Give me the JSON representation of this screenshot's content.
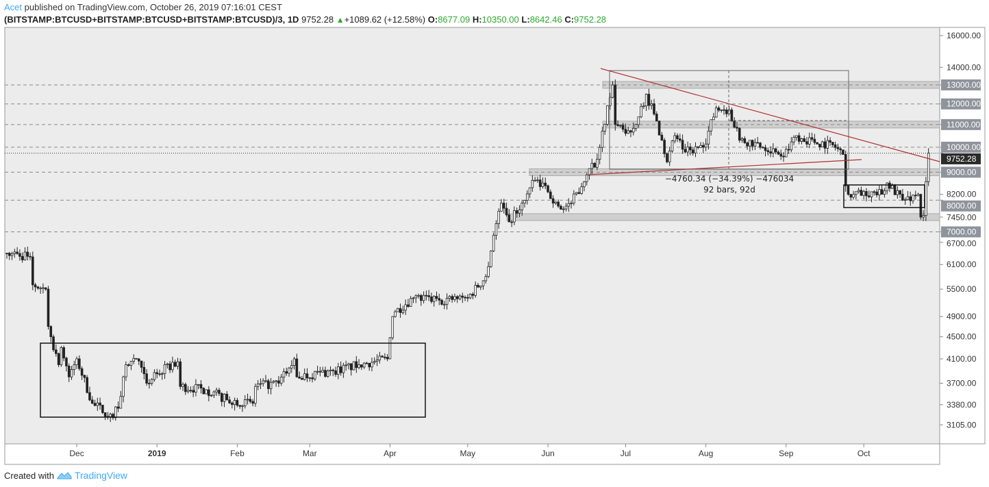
{
  "header": {
    "author": "Acet",
    "published_text": "published on TradingView.com, October 26, 2019 07:16:01 CEST",
    "symbol": "(BITSTAMP:BTCUSD+BITSTAMP:BTCUSD+BITSTAMP:BTCUSD)/3, 1D",
    "last": "9752.28",
    "change": "+1089.62 (+12.58%)",
    "o_label": "O:",
    "o": "8677.09",
    "h_label": "H:",
    "h": "10350.00",
    "l_label": "L:",
    "l": "8642.46",
    "c_label": "C:",
    "c": "9752.28"
  },
  "footer": {
    "created_with": "Created with",
    "brand": "TradingView"
  },
  "colors": {
    "up": "#ffffff",
    "down": "#222222",
    "accent": "#3fa9f5",
    "trend": "#b03030",
    "green": "#2ea82e"
  },
  "chart_data": {
    "type": "candlestick",
    "scale": "log",
    "ylim": [
      2950,
      16500
    ],
    "x_start": "2018-11-04",
    "x_end": "2019-10-26",
    "x_ticks": [
      {
        "label": "Dec",
        "date": "2018-12-01"
      },
      {
        "label": "2019",
        "date": "2019-01-01"
      },
      {
        "label": "Feb",
        "date": "2019-02-01"
      },
      {
        "label": "Mar",
        "date": "2019-03-01"
      },
      {
        "label": "Apr",
        "date": "2019-04-01"
      },
      {
        "label": "May",
        "date": "2019-05-01"
      },
      {
        "label": "Jun",
        "date": "2019-06-01"
      },
      {
        "label": "Jul",
        "date": "2019-07-01"
      },
      {
        "label": "Aug",
        "date": "2019-08-01"
      },
      {
        "label": "Sep",
        "date": "2019-09-01"
      },
      {
        "label": "Oct",
        "date": "2019-10-01"
      }
    ],
    "y_ticks": [
      {
        "v": 16000,
        "label": "16000.00"
      },
      {
        "v": 14000,
        "label": "14000.00"
      },
      {
        "v": 13000,
        "label": "13000.00",
        "boxed": true
      },
      {
        "v": 12000,
        "label": "12000.00",
        "boxed": true
      },
      {
        "v": 11000,
        "label": "11000.00",
        "boxed": true
      },
      {
        "v": 10000,
        "label": "10000.00",
        "boxed": true
      },
      {
        "v": 9000,
        "label": "9000.00",
        "boxed": true
      },
      {
        "v": 8200,
        "label": "8200.00"
      },
      {
        "v": 8000,
        "label": "8000.00",
        "boxed": true
      },
      {
        "v": 7450,
        "label": "7450.00"
      },
      {
        "v": 7000,
        "label": "7000.00",
        "boxed": true
      },
      {
        "v": 6700,
        "label": "6700.00"
      },
      {
        "v": 6100,
        "label": "6100.00"
      },
      {
        "v": 5500,
        "label": "5500.00"
      },
      {
        "v": 4900,
        "label": "4900.00"
      },
      {
        "v": 4500,
        "label": "4500.00"
      },
      {
        "v": 4100,
        "label": "4100.00"
      },
      {
        "v": 3700,
        "label": "3700.00"
      },
      {
        "v": 3380,
        "label": "3380.00"
      },
      {
        "v": 3105,
        "label": "3105.00"
      }
    ],
    "last_price_label": "9752.28",
    "last_price": 9752.28,
    "horizontal_levels": [
      13000,
      12000,
      11000,
      10000,
      9000,
      8000,
      7000
    ],
    "zones": [
      13000,
      11000,
      9000,
      7450
    ],
    "measure_label_1": "−4760.34 (−34.39%) −476034",
    "measure_label_2": "92 bars, 92d",
    "close_keypoints": [
      [
        "2018-11-04",
        6400
      ],
      [
        "2018-11-13",
        6300
      ],
      [
        "2018-11-14",
        5600
      ],
      [
        "2018-11-19",
        5500
      ],
      [
        "2018-11-20",
        4700
      ],
      [
        "2018-11-24",
        4000
      ],
      [
        "2018-11-25",
        4300
      ],
      [
        "2018-11-28",
        3800
      ],
      [
        "2018-12-01",
        4100
      ],
      [
        "2018-12-07",
        3400
      ],
      [
        "2018-12-15",
        3200
      ],
      [
        "2018-12-18",
        3500
      ],
      [
        "2018-12-20",
        4000
      ],
      [
        "2018-12-24",
        4100
      ],
      [
        "2018-12-28",
        3700
      ],
      [
        "2019-01-01",
        3850
      ],
      [
        "2019-01-09",
        4050
      ],
      [
        "2019-01-10",
        3650
      ],
      [
        "2019-01-20",
        3600
      ],
      [
        "2019-01-28",
        3450
      ],
      [
        "2019-02-07",
        3400
      ],
      [
        "2019-02-08",
        3650
      ],
      [
        "2019-02-17",
        3700
      ],
      [
        "2019-02-23",
        4100
      ],
      [
        "2019-02-24",
        3800
      ],
      [
        "2019-03-10",
        3900
      ],
      [
        "2019-03-20",
        4000
      ],
      [
        "2019-03-31",
        4100
      ],
      [
        "2019-04-02",
        4900
      ],
      [
        "2019-04-03",
        5000
      ],
      [
        "2019-04-10",
        5300
      ],
      [
        "2019-04-20",
        5250
      ],
      [
        "2019-05-01",
        5300
      ],
      [
        "2019-05-08",
        5800
      ],
      [
        "2019-05-11",
        6900
      ],
      [
        "2019-05-14",
        7900
      ],
      [
        "2019-05-17",
        7300
      ],
      [
        "2019-05-22",
        7900
      ],
      [
        "2019-05-27",
        8700
      ],
      [
        "2019-05-30",
        8600
      ],
      [
        "2019-06-03",
        7900
      ],
      [
        "2019-06-06",
        7700
      ],
      [
        "2019-06-10",
        7900
      ],
      [
        "2019-06-16",
        8900
      ],
      [
        "2019-06-20",
        9500
      ],
      [
        "2019-06-22",
        10700
      ],
      [
        "2019-06-26",
        13000
      ],
      [
        "2019-06-27",
        11000
      ],
      [
        "2019-07-01",
        10600
      ],
      [
        "2019-07-05",
        11000
      ],
      [
        "2019-07-09",
        12500
      ],
      [
        "2019-07-12",
        11500
      ],
      [
        "2019-07-15",
        10300
      ],
      [
        "2019-07-17",
        9400
      ],
      [
        "2019-07-20",
        10500
      ],
      [
        "2019-07-24",
        9800
      ],
      [
        "2019-07-31",
        10000
      ],
      [
        "2019-08-05",
        11800
      ],
      [
        "2019-08-10",
        11700
      ],
      [
        "2019-08-14",
        10300
      ],
      [
        "2019-08-20",
        10200
      ],
      [
        "2019-08-28",
        9800
      ],
      [
        "2019-08-31",
        9600
      ],
      [
        "2019-09-05",
        10500
      ],
      [
        "2019-09-12",
        10200
      ],
      [
        "2019-09-19",
        10100
      ],
      [
        "2019-09-23",
        9700
      ],
      [
        "2019-09-24",
        8500
      ],
      [
        "2019-09-26",
        8100
      ],
      [
        "2019-10-01",
        8300
      ],
      [
        "2019-10-08",
        8200
      ],
      [
        "2019-10-10",
        8600
      ],
      [
        "2019-10-16",
        8000
      ],
      [
        "2019-10-22",
        8200
      ],
      [
        "2019-10-23",
        7450
      ],
      [
        "2019-10-24",
        7500
      ],
      [
        "2019-10-25",
        8650
      ],
      [
        "2019-10-26",
        9752.28
      ]
    ]
  }
}
